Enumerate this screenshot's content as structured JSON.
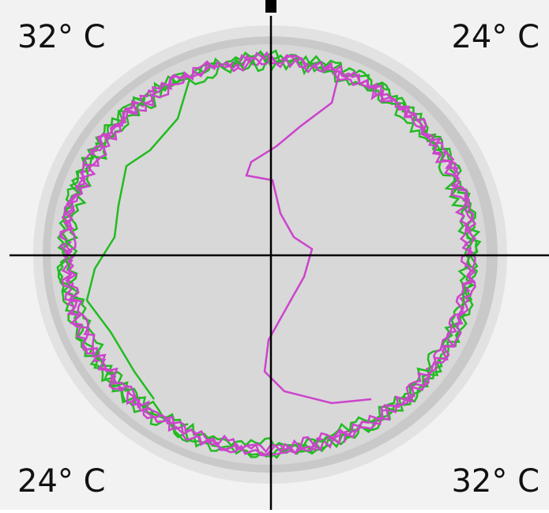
{
  "quadrant_labels": {
    "top_left": "32° C",
    "top_right": "24° C",
    "bottom_left": "24° C",
    "bottom_right": "32° C"
  }
}
